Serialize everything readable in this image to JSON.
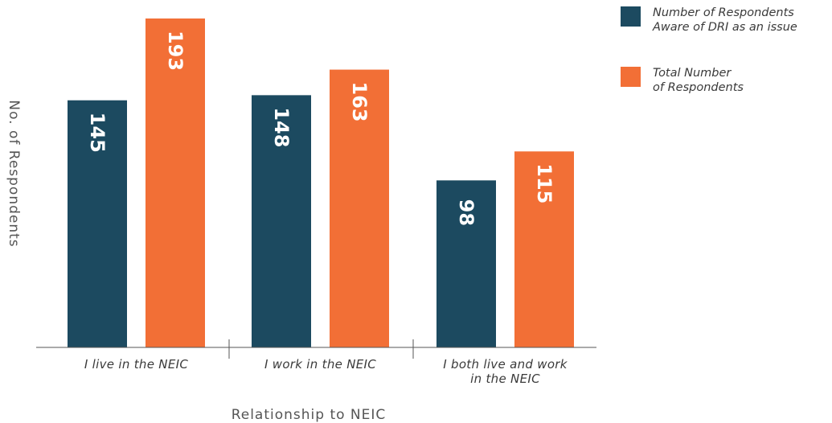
{
  "chart_data": {
    "type": "bar",
    "categories": [
      [
        "I live in the NEIC"
      ],
      [
        "I work in the NEIC"
      ],
      [
        "I both live and work",
        "in the NEIC"
      ]
    ],
    "series": [
      {
        "name": "Number of Respondents Aware of DRI as an issue",
        "legend_lines": [
          "Number of Respondents",
          "Aware of DRI as an issue"
        ],
        "values": [
          145,
          148,
          98
        ],
        "color": "#1c4a60"
      },
      {
        "name": "Total Number of Respondents",
        "legend_lines": [
          "Total Number",
          "of Respondents"
        ],
        "values": [
          193,
          163,
          115
        ],
        "color": "#f26f36"
      }
    ],
    "xlabel": "Relationship to NEIC",
    "ylabel": "No. of Respondents",
    "ylim": [
      0,
      193
    ],
    "grid": false,
    "legend_position": "top-right"
  }
}
